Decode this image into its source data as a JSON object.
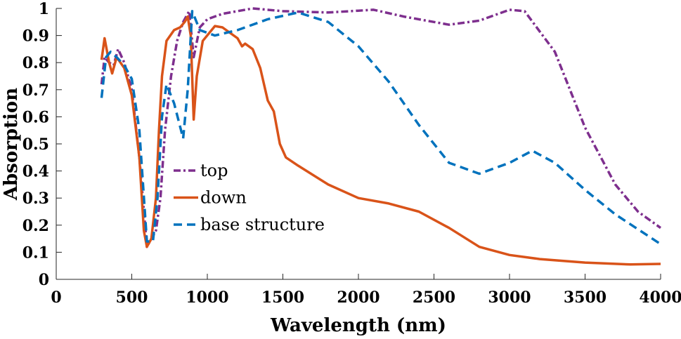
{
  "chart_data": {
    "type": "line",
    "xlabel": "Wavelength (nm)",
    "ylabel": "Absorption",
    "xlim": [
      0,
      4000
    ],
    "ylim": [
      0,
      1
    ],
    "xticks": [
      "0",
      "500",
      "1000",
      "1500",
      "2000",
      "2500",
      "3000",
      "3500",
      "4000"
    ],
    "yticks": [
      "0",
      "0.1",
      "0.2",
      "0.3",
      "0.4",
      "0.5",
      "0.6",
      "0.7",
      "0.8",
      "0.9",
      "1"
    ],
    "grid": false,
    "legend_position": "center-left",
    "series": [
      {
        "name": "top",
        "color": "#7e2f8e",
        "style": "dash-dot",
        "x": [
          300,
          320,
          350,
          380,
          410,
          450,
          500,
          550,
          600,
          630,
          660,
          690,
          720,
          760,
          800,
          840,
          880,
          910,
          950,
          1000,
          1100,
          1300,
          1500,
          1800,
          2100,
          2300,
          2600,
          2800,
          3000,
          3100,
          3300,
          3500,
          3700,
          3850,
          4000
        ],
        "y": [
          0.72,
          0.82,
          0.8,
          0.79,
          0.85,
          0.8,
          0.7,
          0.45,
          0.12,
          0.15,
          0.18,
          0.3,
          0.55,
          0.75,
          0.88,
          0.95,
          0.99,
          0.82,
          0.93,
          0.96,
          0.98,
          1.0,
          0.99,
          0.985,
          0.995,
          0.97,
          0.94,
          0.955,
          0.995,
          0.99,
          0.84,
          0.56,
          0.35,
          0.25,
          0.19
        ]
      },
      {
        "name": "down",
        "color": "#d95319",
        "style": "solid",
        "x": [
          300,
          320,
          350,
          370,
          400,
          450,
          500,
          550,
          580,
          600,
          630,
          660,
          680,
          700,
          730,
          780,
          820,
          850,
          870,
          890,
          910,
          930,
          970,
          1050,
          1100,
          1200,
          1230,
          1250,
          1300,
          1350,
          1400,
          1440,
          1480,
          1520,
          1600,
          1800,
          2000,
          2200,
          2400,
          2600,
          2800,
          3000,
          3200,
          3500,
          3800,
          4000
        ],
        "y": [
          0.81,
          0.89,
          0.8,
          0.76,
          0.82,
          0.78,
          0.68,
          0.45,
          0.18,
          0.12,
          0.15,
          0.3,
          0.55,
          0.75,
          0.88,
          0.92,
          0.93,
          0.95,
          0.97,
          0.9,
          0.59,
          0.75,
          0.88,
          0.935,
          0.93,
          0.89,
          0.86,
          0.87,
          0.85,
          0.78,
          0.66,
          0.62,
          0.5,
          0.45,
          0.42,
          0.35,
          0.3,
          0.28,
          0.25,
          0.19,
          0.12,
          0.09,
          0.075,
          0.062,
          0.055,
          0.057
        ]
      },
      {
        "name": "base structure",
        "color": "#0072bd",
        "style": "dashed",
        "x": [
          300,
          330,
          360,
          400,
          450,
          500,
          550,
          600,
          640,
          670,
          700,
          730,
          780,
          840,
          870,
          900,
          950,
          1050,
          1200,
          1400,
          1600,
          1800,
          2000,
          2200,
          2400,
          2600,
          2800,
          3000,
          3150,
          3300,
          3500,
          3700,
          4000
        ],
        "y": [
          0.67,
          0.82,
          0.84,
          0.82,
          0.79,
          0.74,
          0.55,
          0.14,
          0.14,
          0.3,
          0.6,
          0.72,
          0.65,
          0.52,
          0.7,
          0.99,
          0.92,
          0.9,
          0.92,
          0.96,
          0.985,
          0.95,
          0.86,
          0.73,
          0.57,
          0.43,
          0.39,
          0.43,
          0.475,
          0.43,
          0.33,
          0.24,
          0.13
        ]
      }
    ]
  }
}
